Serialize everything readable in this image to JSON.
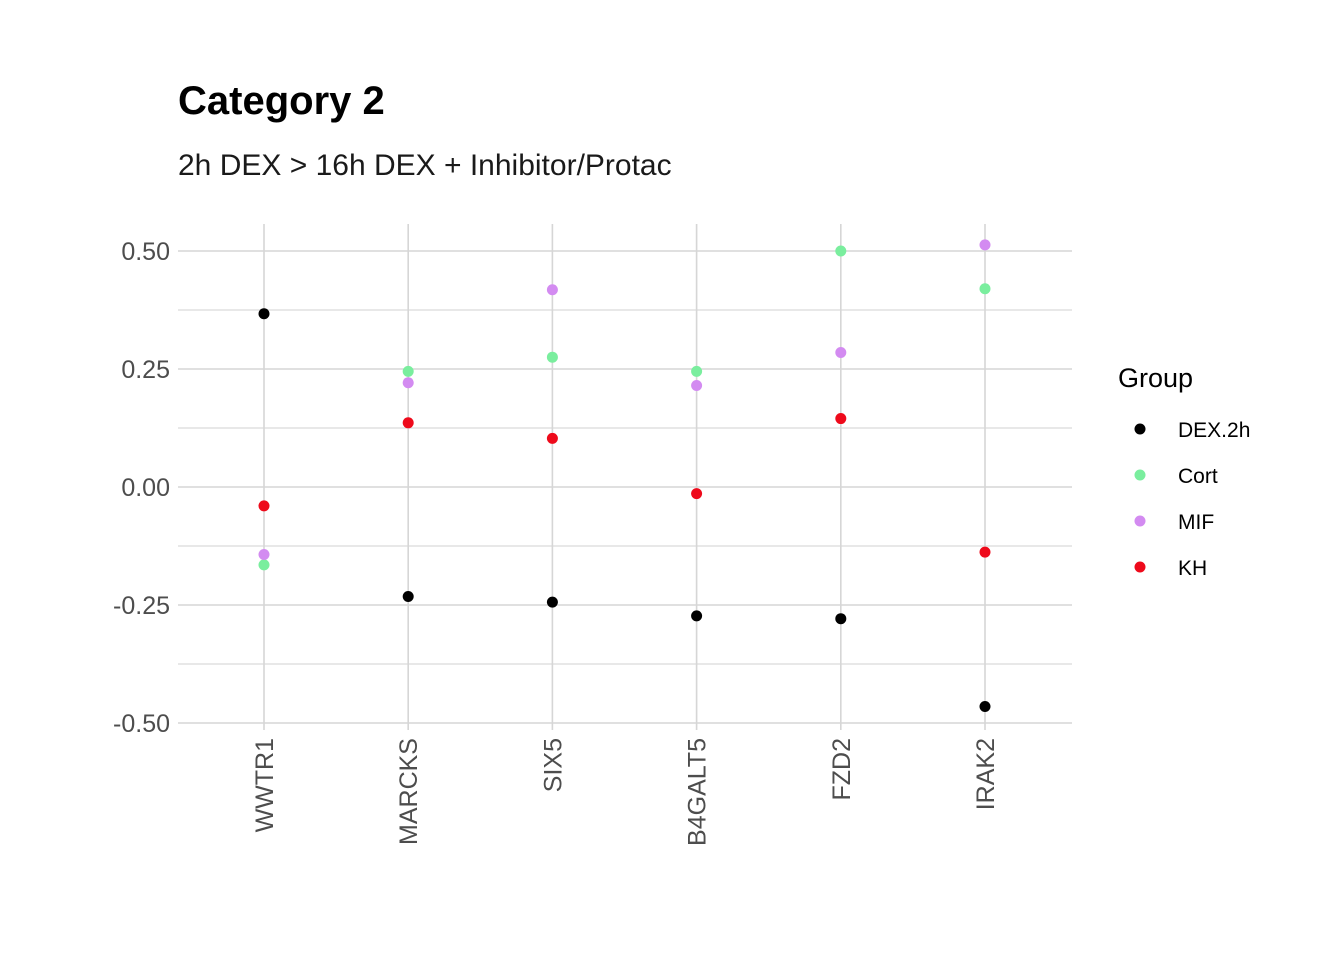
{
  "chart_data": {
    "type": "scatter",
    "title": "Category 2",
    "subtitle": "2h DEX > 16h DEX + Inhibitor/Protac",
    "xlabel": "",
    "ylabel": "",
    "categories": [
      "WWTR1",
      "MARCKS",
      "SIX5",
      "B4GALT5",
      "FZD2",
      "IRAK2"
    ],
    "y_ticks": [
      -0.5,
      -0.25,
      0,
      0.25,
      0.5
    ],
    "y_tick_labels": [
      "-0.50",
      "-0.25",
      "0.00",
      "0.25",
      "0.50"
    ],
    "ylim": [
      -0.5,
      0.5
    ],
    "grid": true,
    "legend": {
      "title": "Group",
      "position": "right"
    },
    "series": [
      {
        "name": "DEX.2h",
        "color": "#000000",
        "values": [
          0.367,
          -0.232,
          -0.244,
          -0.273,
          -0.279,
          -0.465
        ]
      },
      {
        "name": "Cort",
        "color": "#7AEE9E",
        "values": [
          -0.165,
          0.245,
          0.275,
          0.245,
          0.5,
          0.42
        ]
      },
      {
        "name": "MIF",
        "color": "#D38BF1",
        "values": [
          -0.143,
          0.221,
          0.418,
          0.215,
          0.285,
          0.513
        ]
      },
      {
        "name": "KH",
        "color": "#EE0A1B",
        "values": [
          -0.04,
          0.136,
          0.103,
          -0.014,
          0.145,
          -0.138
        ]
      }
    ]
  }
}
